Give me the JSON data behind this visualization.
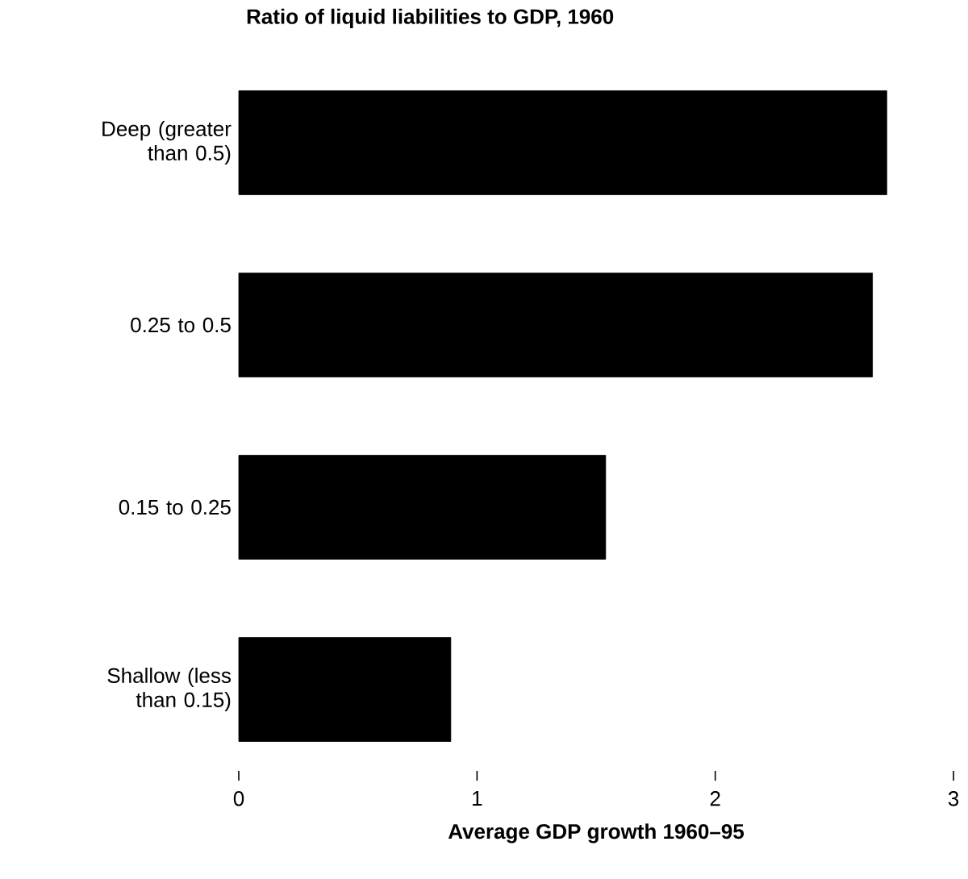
{
  "chart_data": {
    "type": "bar",
    "orientation": "horizontal",
    "title": "Ratio of liquid liabilities to GDP, 1960",
    "xlabel": "Average GDP growth 1960–95",
    "categories": [
      "Deep (greater than 0.5)",
      "0.25 to 0.5",
      "0.15 to 0.25",
      "Shallow (less than 0.15)"
    ],
    "values": [
      2.72,
      2.66,
      1.54,
      0.89
    ],
    "color": "#000000",
    "xlim": [
      0,
      3
    ],
    "xticks": [
      0,
      1,
      2,
      3
    ]
  }
}
